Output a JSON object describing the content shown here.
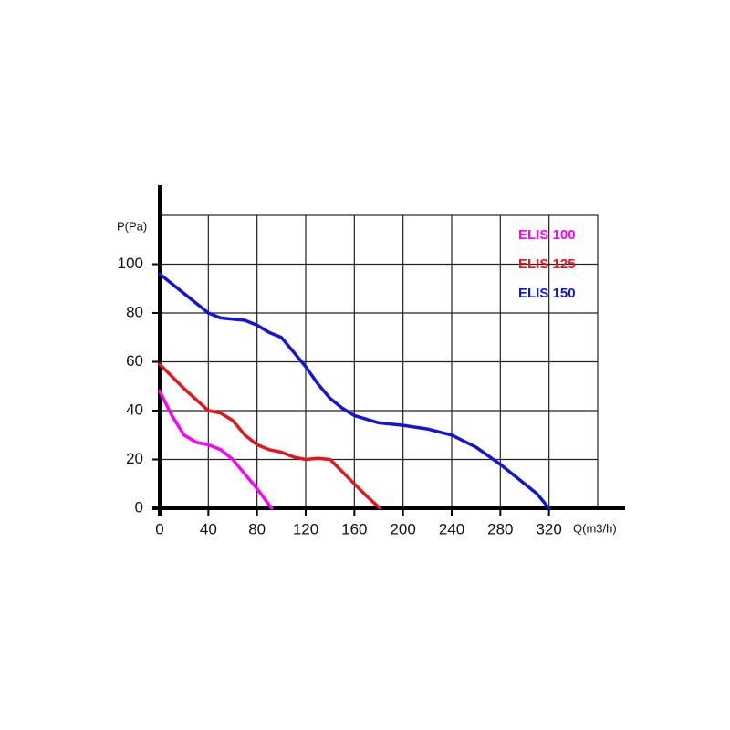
{
  "chart_data": {
    "type": "line",
    "y_label": "P(Pa)",
    "x_label": "Q(m3/h)",
    "xlim": [
      0,
      360
    ],
    "ylim": [
      0,
      120
    ],
    "xticks": [
      0,
      40,
      80,
      120,
      160,
      200,
      240,
      280,
      320
    ],
    "yticks": [
      0,
      20,
      40,
      60,
      80,
      100
    ],
    "grid": true,
    "legend": "upper right",
    "series": [
      {
        "name": "ELIS 100",
        "color": "#ff00ff",
        "x": [
          0,
          10,
          20,
          30,
          40,
          50,
          60,
          70,
          80,
          92
        ],
        "values": [
          48,
          38,
          30,
          27,
          26,
          24,
          20,
          14,
          8,
          0
        ]
      },
      {
        "name": "ELIS 125",
        "color": "#e8141c",
        "x": [
          0,
          20,
          40,
          50,
          60,
          70,
          80,
          90,
          100,
          110,
          120,
          130,
          140,
          150,
          160,
          170,
          181
        ],
        "values": [
          59,
          49,
          40,
          39,
          36,
          30,
          26,
          24,
          23,
          21,
          20,
          20.5,
          20,
          15,
          10,
          5,
          0
        ]
      },
      {
        "name": "ELIS 150",
        "color": "#1414d8",
        "x": [
          0,
          20,
          40,
          50,
          60,
          70,
          80,
          90,
          100,
          110,
          120,
          130,
          140,
          150,
          160,
          180,
          200,
          220,
          240,
          260,
          280,
          300,
          310,
          320
        ],
        "values": [
          96,
          88,
          80,
          78,
          77.5,
          77,
          75,
          72,
          70,
          64,
          58,
          51,
          45,
          41,
          38,
          35,
          34,
          32.5,
          30,
          25,
          18,
          10,
          6,
          0
        ]
      }
    ]
  }
}
